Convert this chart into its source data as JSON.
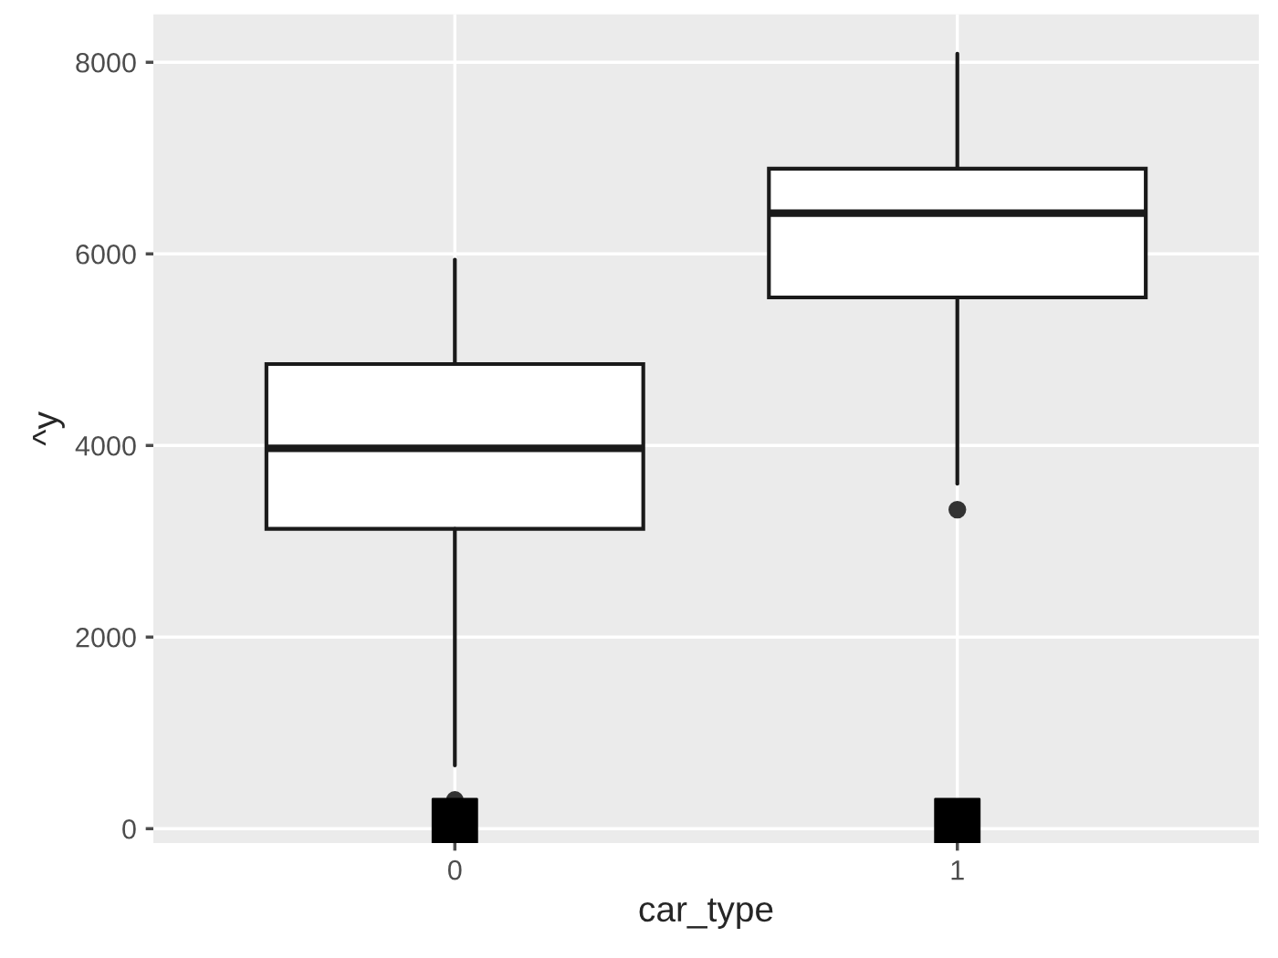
{
  "chart_data": {
    "type": "box",
    "xlabel": "car_type",
    "ylabel": "^y",
    "categories": [
      "0",
      "1"
    ],
    "boxes": [
      {
        "low": 660,
        "q1": 3130,
        "median": 3970,
        "q3": 4850,
        "high": 5940,
        "outliers": [
          300
        ]
      },
      {
        "low": 3600,
        "q1": 5545,
        "median": 6425,
        "q3": 6890,
        "high": 8090,
        "outliers": [
          3330
        ]
      }
    ],
    "series": [
      {
        "type": "scatter",
        "color": "#000000",
        "x": [
          "0",
          "1"
        ],
        "values": [
          80,
          80
        ],
        "marker": "square"
      }
    ],
    "ylim": [
      -150,
      8500
    ],
    "yticks": [
      0,
      2000,
      4000,
      6000,
      8000
    ],
    "grid": true,
    "legend": false
  }
}
